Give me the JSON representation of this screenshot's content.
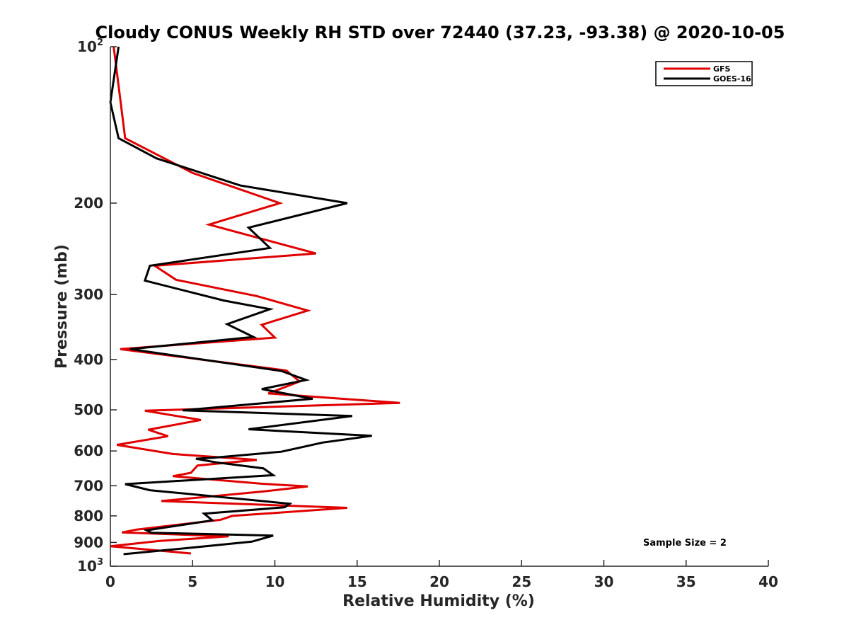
{
  "chart_data": {
    "type": "line",
    "title": "Cloudy CONUS Weekly RH STD over 72440 (37.23, -93.38) @ 2020-10-05",
    "xlabel": "Relative Humidity (%)",
    "ylabel": "Pressure (mb)",
    "xlim": [
      0,
      40
    ],
    "ylim": [
      100,
      1000
    ],
    "y_scale": "log",
    "y_reversed": true,
    "xticks": [
      0,
      5,
      10,
      15,
      20,
      25,
      30,
      35,
      40
    ],
    "yticks": [
      {
        "value": 100,
        "label": "10",
        "sup": "2"
      },
      {
        "value": 200,
        "label": "200",
        "sup": ""
      },
      {
        "value": 300,
        "label": "300",
        "sup": ""
      },
      {
        "value": 400,
        "label": "400",
        "sup": ""
      },
      {
        "value": 500,
        "label": "500",
        "sup": ""
      },
      {
        "value": 600,
        "label": "600",
        "sup": ""
      },
      {
        "value": 700,
        "label": "700",
        "sup": ""
      },
      {
        "value": 800,
        "label": "800",
        "sup": ""
      },
      {
        "value": 900,
        "label": "900",
        "sup": ""
      },
      {
        "value": 1000,
        "label": "10",
        "sup": "3"
      }
    ],
    "grid": false,
    "legend_position": "top-right",
    "annotation": "Sample Size = 2",
    "series": [
      {
        "name": "GFS",
        "color": "#e00000",
        "points": [
          [
            0.2,
            100
          ],
          [
            0.9,
            150
          ],
          [
            5,
            175
          ],
          [
            10.3,
            200
          ],
          [
            6,
            220
          ],
          [
            12.5,
            250
          ],
          [
            2.7,
            264
          ],
          [
            4,
            281
          ],
          [
            8.9,
            302
          ],
          [
            12,
            322
          ],
          [
            9.2,
            343
          ],
          [
            10,
            363
          ],
          [
            0.6,
            382
          ],
          [
            10.7,
            420
          ],
          [
            11.5,
            441
          ],
          [
            9.6,
            465
          ],
          [
            17.6,
            485
          ],
          [
            2.1,
            502
          ],
          [
            5.5,
            523
          ],
          [
            2.3,
            546
          ],
          [
            3.5,
            562
          ],
          [
            0.4,
            584
          ],
          [
            3.8,
            608
          ],
          [
            8.9,
            624
          ],
          [
            5.3,
            640
          ],
          [
            4.9,
            661
          ],
          [
            3.8,
            671
          ],
          [
            9.3,
            694
          ],
          [
            12,
            702
          ],
          [
            9.3,
            718
          ],
          [
            3.1,
            749
          ],
          [
            14.4,
            772
          ],
          [
            7.4,
            800
          ],
          [
            6.7,
            814
          ],
          [
            1.6,
            850
          ],
          [
            0.7,
            861
          ],
          [
            7.2,
            876
          ],
          [
            3,
            894
          ],
          [
            0,
            915
          ],
          [
            4.9,
            945
          ]
        ]
      },
      {
        "name": "GOES-16",
        "color": "#000000",
        "points": [
          [
            0.5,
            100
          ],
          [
            0,
            128
          ],
          [
            0.5,
            150
          ],
          [
            2.8,
            164
          ],
          [
            7.9,
            185
          ],
          [
            14.4,
            200
          ],
          [
            8.4,
            223
          ],
          [
            9.7,
            244
          ],
          [
            2.4,
            264
          ],
          [
            2.1,
            282
          ],
          [
            6.9,
            308
          ],
          [
            9.7,
            320
          ],
          [
            7.1,
            342
          ],
          [
            8.7,
            362
          ],
          [
            1.2,
            382
          ],
          [
            10.4,
            421
          ],
          [
            11.9,
            438
          ],
          [
            9.2,
            456
          ],
          [
            12.3,
            476
          ],
          [
            4.4,
            501
          ],
          [
            14.7,
            514
          ],
          [
            8.4,
            545
          ],
          [
            15.9,
            561
          ],
          [
            12.9,
            578
          ],
          [
            10.4,
            602
          ],
          [
            6.3,
            618
          ],
          [
            5.2,
            621
          ],
          [
            6.4,
            631
          ],
          [
            9.3,
            648
          ],
          [
            9.9,
            668
          ],
          [
            0.9,
            695
          ],
          [
            2.4,
            714
          ],
          [
            10.9,
            758
          ],
          [
            10.6,
            770
          ],
          [
            5.7,
            792
          ],
          [
            6.2,
            816
          ],
          [
            2.2,
            853
          ],
          [
            2.5,
            862
          ],
          [
            9.9,
            873
          ],
          [
            8.6,
            897
          ],
          [
            5.1,
            920
          ],
          [
            0.8,
            948
          ]
        ]
      }
    ]
  }
}
